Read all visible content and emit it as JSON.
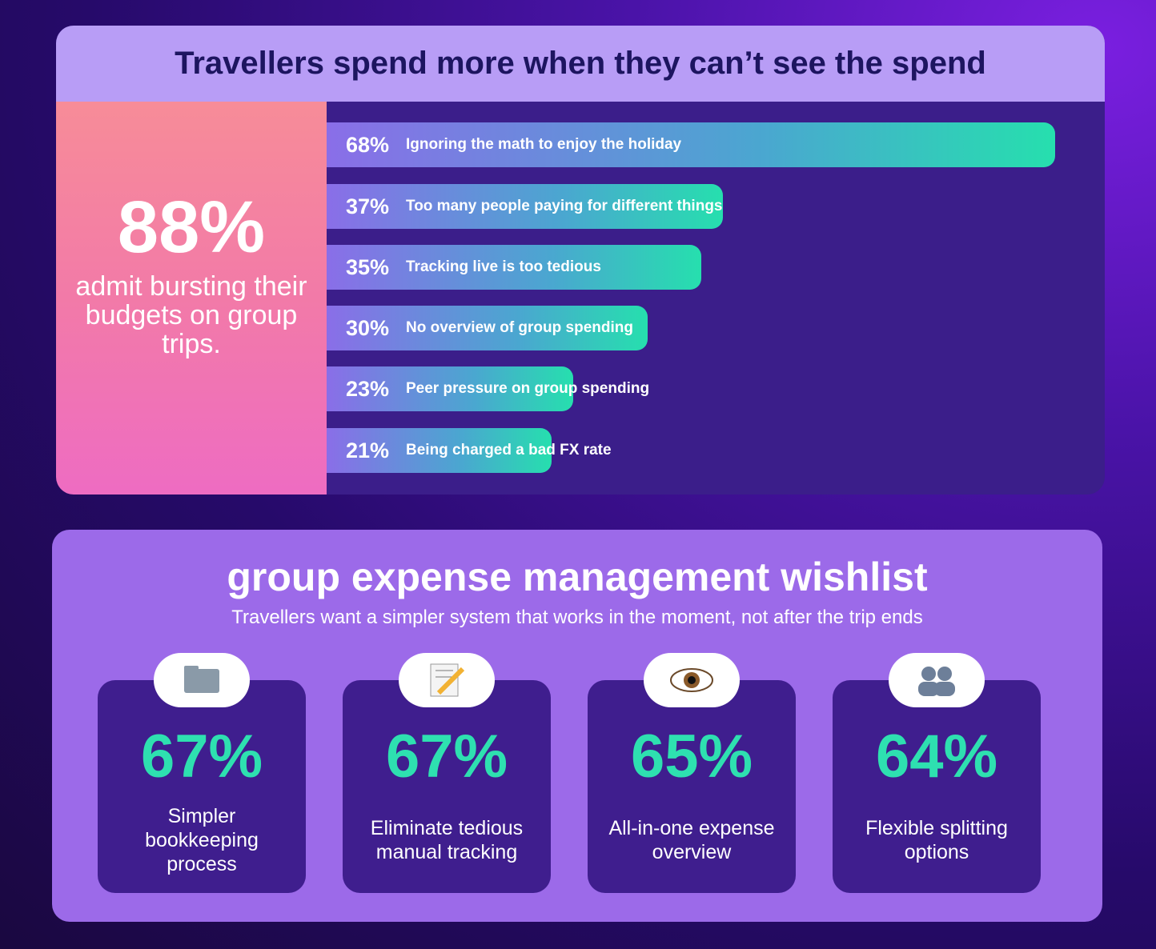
{
  "title": "Travellers spend more when they can’t see the spend",
  "headline": {
    "value": "88%",
    "text": "admit bursting their budgets on group trips."
  },
  "chart_data": {
    "type": "bar",
    "categories": [
      "Ignoring the math to enjoy the holiday",
      "Too many people paying for different things",
      "Tracking live is too tedious",
      "No overview of group spending",
      "Peer pressure on group spending",
      "Being charged a bad FX rate"
    ],
    "values": [
      68,
      37,
      35,
      30,
      23,
      21
    ],
    "value_labels": [
      "68%",
      "37%",
      "35%",
      "30%",
      "23%",
      "21%"
    ]
  },
  "wishlist": {
    "title": "group expense management wishlist",
    "subtitle": "Travellers want a simpler system that works in the moment, not after the trip ends",
    "items": [
      {
        "value": "67%",
        "label": "Simpler bookkeeping process"
      },
      {
        "value": "67%",
        "label": "Eliminate tedious manual tracking"
      },
      {
        "value": "65%",
        "label": "All-in-one expense overview"
      },
      {
        "value": "64%",
        "label": "Flexible splitting options"
      }
    ]
  }
}
